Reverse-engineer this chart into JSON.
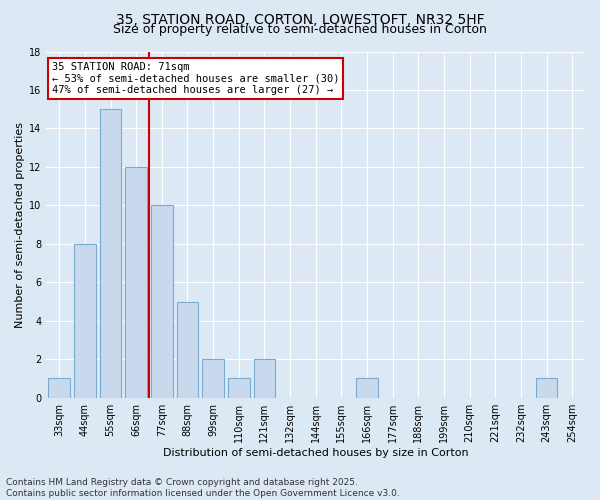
{
  "title_line1": "35, STATION ROAD, CORTON, LOWESTOFT, NR32 5HF",
  "title_line2": "Size of property relative to semi-detached houses in Corton",
  "xlabel": "Distribution of semi-detached houses by size in Corton",
  "ylabel": "Number of semi-detached properties",
  "categories": [
    "33sqm",
    "44sqm",
    "55sqm",
    "66sqm",
    "77sqm",
    "88sqm",
    "99sqm",
    "110sqm",
    "121sqm",
    "132sqm",
    "144sqm",
    "155sqm",
    "166sqm",
    "177sqm",
    "188sqm",
    "199sqm",
    "210sqm",
    "221sqm",
    "232sqm",
    "243sqm",
    "254sqm"
  ],
  "values": [
    1,
    8,
    15,
    12,
    10,
    5,
    2,
    1,
    2,
    0,
    0,
    0,
    1,
    0,
    0,
    0,
    0,
    0,
    0,
    1,
    0
  ],
  "bar_color": "#c9d9ed",
  "bar_edge_color": "#7aaace",
  "vline_x": 3.5,
  "vline_color": "#cc0000",
  "annotation_line1": "35 STATION ROAD: 71sqm",
  "annotation_line2": "← 53% of semi-detached houses are smaller (30)",
  "annotation_line3": "47% of semi-detached houses are larger (27) →",
  "annotation_box_color": "#ffffff",
  "annotation_box_edge_color": "#cc0000",
  "ylim": [
    0,
    18
  ],
  "yticks": [
    0,
    2,
    4,
    6,
    8,
    10,
    12,
    14,
    16,
    18
  ],
  "background_color": "#dce9f5",
  "plot_bg_color": "#dce9f5",
  "footer_line1": "Contains HM Land Registry data © Crown copyright and database right 2025.",
  "footer_line2": "Contains public sector information licensed under the Open Government Licence v3.0.",
  "title_fontsize": 10,
  "subtitle_fontsize": 9,
  "axis_label_fontsize": 8,
  "tick_fontsize": 7,
  "annotation_fontsize": 7.5,
  "footer_fontsize": 6.5
}
